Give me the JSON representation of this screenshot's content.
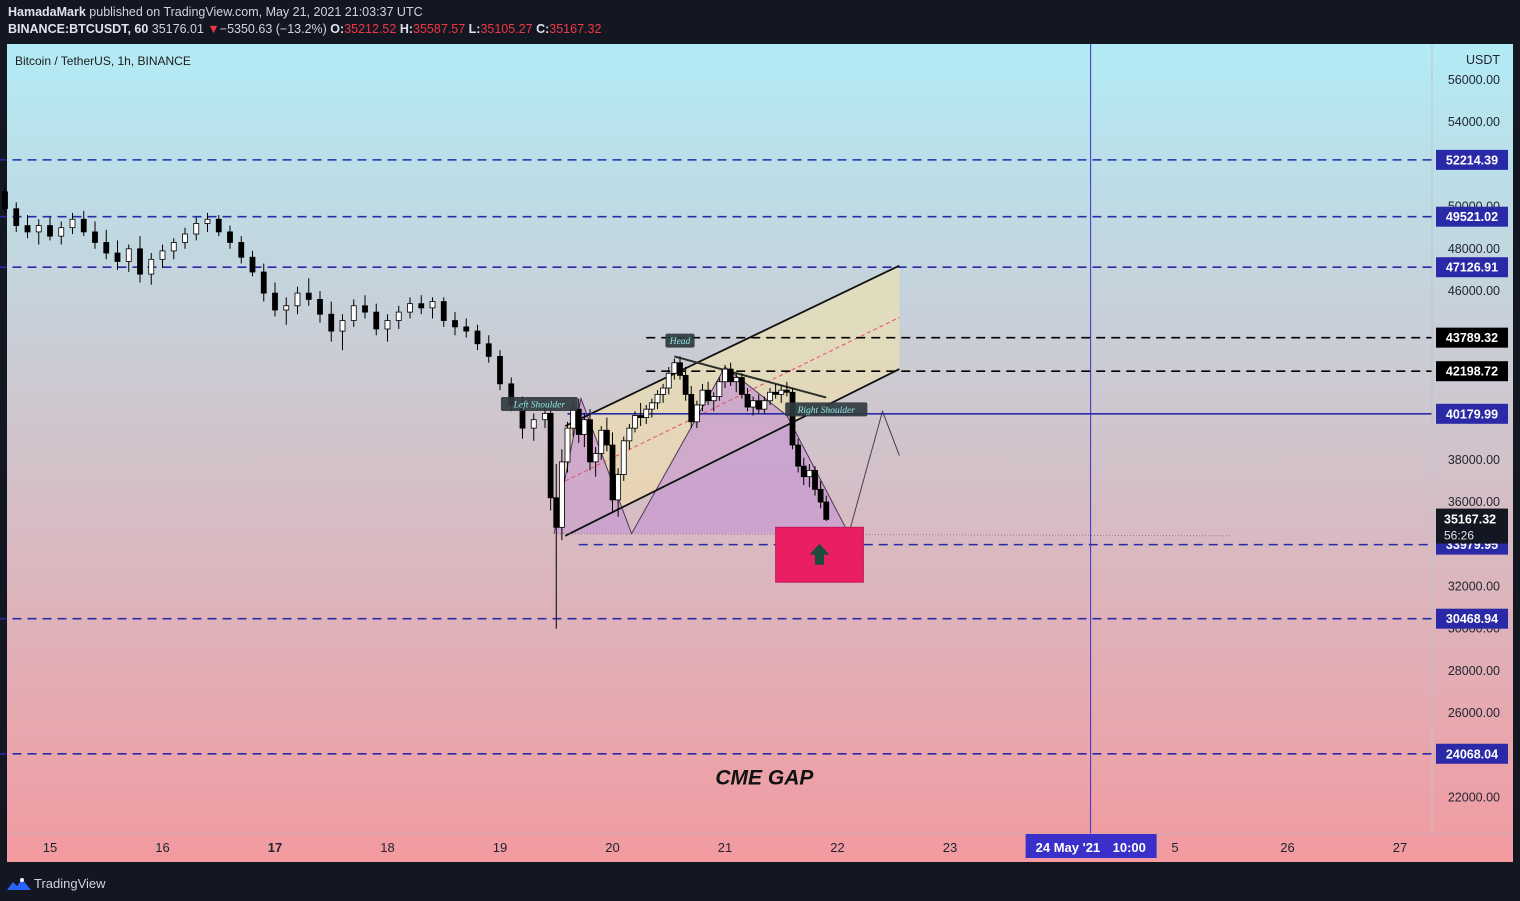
{
  "header": {
    "publisher_name": "HamadaMark",
    "publisher_rest": " published on TradingView.com, May 21, 2021 21:03:37 UTC",
    "symbol_line": "BINANCE:BTCUSDT, 60",
    "last_price": "35176.01",
    "change_arrow": "▼",
    "change": "−5350.63 (−13.2%)",
    "o_label": "O:",
    "o_value": "35212.52",
    "h_label": "H:",
    "h_value": "35587.57",
    "l_label": "L:",
    "l_value": "35105.27",
    "c_label": "C:",
    "c_value": "35167.32"
  },
  "footer": {
    "brand": "TradingView"
  },
  "chart_data": {
    "type": "candlestick",
    "title": "Bitcoin / TetherUS, 1h, BINANCE",
    "currency_label": "USDT",
    "ylim": [
      20000,
      57000
    ],
    "y_ticks": [
      56000,
      54000,
      50000,
      48000,
      46000,
      38000,
      36000,
      32000,
      30000,
      28000,
      26000,
      22000
    ],
    "x_ticks": [
      {
        "day": 15,
        "label": "15",
        "bold": false
      },
      {
        "day": 16,
        "label": "16",
        "bold": false
      },
      {
        "day": 17,
        "label": "17",
        "bold": true
      },
      {
        "day": 18,
        "label": "18",
        "bold": false
      },
      {
        "day": 19,
        "label": "19",
        "bold": false
      },
      {
        "day": 20,
        "label": "20",
        "bold": false
      },
      {
        "day": 21,
        "label": "21",
        "bold": false
      },
      {
        "day": 22,
        "label": "22",
        "bold": false
      },
      {
        "day": 23,
        "label": "23",
        "bold": false
      },
      {
        "day": 25,
        "label": "5",
        "bold": false
      },
      {
        "day": 26,
        "label": "26",
        "bold": false
      },
      {
        "day": 27,
        "label": "27",
        "bold": false
      }
    ],
    "crosshair_label": {
      "date": "24 May '21",
      "time": "10:00",
      "day": 24.25
    },
    "levels": [
      {
        "price": 52214.39,
        "label": "52214.39",
        "color": "#2a2aa8",
        "style": "dashed",
        "from_day": 14.0
      },
      {
        "price": 49521.02,
        "label": "49521.02",
        "color": "#2a2aa8",
        "style": "dashed",
        "from_day": 14.0
      },
      {
        "price": 47126.91,
        "label": "47126.91",
        "color": "#2a2aa8",
        "style": "dashed",
        "from_day": 14.0
      },
      {
        "price": 43789.32,
        "label": "43789.32",
        "color": "#000000",
        "style": "dashed",
        "from_day": 20.3
      },
      {
        "price": 42198.72,
        "label": "42198.72",
        "color": "#000000",
        "style": "dashed",
        "from_day": 20.3
      },
      {
        "price": 40179.99,
        "label": "40179.99",
        "color": "#2a2aa8",
        "style": "solid",
        "from_day": 19.6
      },
      {
        "price": 33979.95,
        "label": "33979.95",
        "color": "#2a2aa8",
        "style": "dashed",
        "from_day": 19.7
      },
      {
        "price": 30468.94,
        "label": "30468.94",
        "color": "#2a2aa8",
        "style": "dashed",
        "from_day": 14.0
      },
      {
        "price": 24068.04,
        "label": "24068.04",
        "color": "#2a2aa8",
        "style": "dashed",
        "from_day": 14.0
      }
    ],
    "last_price_label": {
      "price": 35167.32,
      "label": "35167.32",
      "countdown": "56:26"
    },
    "candles": [
      [
        14.0,
        51500,
        51900,
        51000,
        51300
      ],
      [
        14.1,
        51300,
        51600,
        50600,
        50800
      ],
      [
        14.2,
        50800,
        51100,
        50200,
        50500
      ],
      [
        14.3,
        50500,
        50900,
        49600,
        49800
      ],
      [
        14.4,
        49800,
        50300,
        49400,
        50100
      ],
      [
        14.5,
        50100,
        50900,
        49800,
        50700
      ],
      [
        14.6,
        50700,
        51000,
        49700,
        49900
      ],
      [
        14.7,
        49900,
        50200,
        48800,
        49100
      ],
      [
        14.8,
        49100,
        49600,
        48500,
        48800
      ],
      [
        14.9,
        48800,
        49400,
        48200,
        49100
      ],
      [
        15.0,
        49100,
        49500,
        48400,
        48600
      ],
      [
        15.1,
        48600,
        49300,
        48200,
        49000
      ],
      [
        15.2,
        49000,
        49700,
        48700,
        49400
      ],
      [
        15.3,
        49400,
        49800,
        48600,
        48800
      ],
      [
        15.4,
        48800,
        49300,
        48000,
        48300
      ],
      [
        15.5,
        48300,
        48900,
        47500,
        47800
      ],
      [
        15.6,
        47800,
        48400,
        47000,
        47400
      ],
      [
        15.7,
        47400,
        48200,
        46900,
        48000
      ],
      [
        15.8,
        48000,
        48600,
        46400,
        46800
      ],
      [
        15.9,
        46800,
        47800,
        46300,
        47500
      ],
      [
        16.0,
        47500,
        48200,
        47100,
        47900
      ],
      [
        16.1,
        47900,
        48500,
        47500,
        48300
      ],
      [
        16.2,
        48300,
        49000,
        48000,
        48700
      ],
      [
        16.3,
        48700,
        49500,
        48400,
        49200
      ],
      [
        16.4,
        49200,
        49700,
        48800,
        49400
      ],
      [
        16.5,
        49400,
        49600,
        48600,
        48800
      ],
      [
        16.6,
        48800,
        49100,
        48000,
        48300
      ],
      [
        16.7,
        48300,
        48600,
        47300,
        47600
      ],
      [
        16.8,
        47600,
        47900,
        46700,
        46900
      ],
      [
        16.9,
        46900,
        47300,
        45500,
        45900
      ],
      [
        17.0,
        45900,
        46400,
        44800,
        45100
      ],
      [
        17.1,
        45100,
        45700,
        44400,
        45300
      ],
      [
        17.2,
        45300,
        46200,
        44900,
        45900
      ],
      [
        17.3,
        45900,
        46600,
        45300,
        45600
      ],
      [
        17.4,
        45600,
        46000,
        44500,
        44900
      ],
      [
        17.5,
        44900,
        45500,
        43600,
        44100
      ],
      [
        17.6,
        44100,
        44900,
        43200,
        44600
      ],
      [
        17.7,
        44600,
        45600,
        44300,
        45300
      ],
      [
        17.8,
        45300,
        45800,
        44700,
        45000
      ],
      [
        17.9,
        45000,
        45400,
        43900,
        44200
      ],
      [
        18.0,
        44200,
        44900,
        43600,
        44600
      ],
      [
        18.1,
        44600,
        45300,
        44200,
        45000
      ],
      [
        18.2,
        45000,
        45700,
        44700,
        45400
      ],
      [
        18.3,
        45400,
        45800,
        44900,
        45200
      ],
      [
        18.4,
        45200,
        45700,
        44700,
        45500
      ],
      [
        18.5,
        45500,
        45700,
        44300,
        44600
      ],
      [
        18.6,
        44600,
        45000,
        43900,
        44300
      ],
      [
        18.7,
        44300,
        44700,
        43800,
        44100
      ],
      [
        18.8,
        44100,
        44400,
        43200,
        43500
      ],
      [
        18.9,
        43500,
        43900,
        42600,
        42900
      ],
      [
        19.0,
        42900,
        43200,
        41300,
        41600
      ],
      [
        19.1,
        41600,
        41900,
        40300,
        40600
      ],
      [
        19.2,
        40600,
        41000,
        39000,
        39500
      ],
      [
        19.3,
        39500,
        40200,
        38900,
        39900
      ],
      [
        19.4,
        39900,
        40600,
        39500,
        40200
      ],
      [
        19.45,
        40200,
        40500,
        35600,
        36200
      ],
      [
        19.5,
        36200,
        37800,
        30000,
        34800
      ],
      [
        19.55,
        34800,
        38500,
        34200,
        37900
      ],
      [
        19.6,
        37900,
        39800,
        37400,
        39500
      ],
      [
        19.65,
        39500,
        40700,
        39100,
        40400
      ],
      [
        19.7,
        40400,
        40900,
        38800,
        39200
      ],
      [
        19.75,
        39200,
        40200,
        38600,
        39900
      ],
      [
        19.8,
        39900,
        40400,
        37500,
        37900
      ],
      [
        19.85,
        37900,
        38600,
        37200,
        38300
      ],
      [
        19.9,
        38300,
        39600,
        38000,
        39400
      ],
      [
        19.95,
        39400,
        40000,
        38400,
        38700
      ],
      [
        20.0,
        38700,
        39300,
        35500,
        36100
      ],
      [
        20.05,
        36100,
        37600,
        35300,
        37300
      ],
      [
        20.1,
        37300,
        39100,
        37000,
        38900
      ],
      [
        20.15,
        38900,
        39700,
        38500,
        39500
      ],
      [
        20.2,
        39500,
        40300,
        39300,
        40100
      ],
      [
        20.25,
        40100,
        40700,
        39600,
        40000
      ],
      [
        20.3,
        40000,
        40600,
        39700,
        40400
      ],
      [
        20.35,
        40400,
        40900,
        40000,
        40700
      ],
      [
        20.4,
        40700,
        41300,
        40400,
        41100
      ],
      [
        20.45,
        41100,
        41600,
        40700,
        41400
      ],
      [
        20.5,
        41400,
        42400,
        41100,
        42100
      ],
      [
        20.55,
        42100,
        42800,
        41800,
        42600
      ],
      [
        20.6,
        42600,
        42900,
        41800,
        42000
      ],
      [
        20.65,
        42000,
        42400,
        40800,
        41100
      ],
      [
        20.7,
        41100,
        41500,
        39500,
        39800
      ],
      [
        20.75,
        39800,
        40800,
        39500,
        40600
      ],
      [
        20.8,
        40600,
        41600,
        40300,
        41300
      ],
      [
        20.85,
        41300,
        41700,
        40600,
        40800
      ],
      [
        20.9,
        40800,
        41200,
        40300,
        41000
      ],
      [
        20.95,
        41000,
        41900,
        40800,
        41700
      ],
      [
        21.0,
        41700,
        42500,
        41400,
        42300
      ],
      [
        21.05,
        42300,
        42600,
        41500,
        41700
      ],
      [
        21.1,
        41700,
        42100,
        41200,
        41900
      ],
      [
        21.15,
        41900,
        42100,
        40900,
        41100
      ],
      [
        21.2,
        41100,
        41400,
        40300,
        40500
      ],
      [
        21.25,
        40500,
        41000,
        40100,
        40800
      ],
      [
        21.3,
        40800,
        41100,
        40200,
        40400
      ],
      [
        21.35,
        40400,
        41000,
        40200,
        40800
      ],
      [
        21.4,
        40800,
        41400,
        40600,
        41200
      ],
      [
        21.45,
        41200,
        41600,
        40900,
        41100
      ],
      [
        21.5,
        41100,
        41500,
        40700,
        41300
      ],
      [
        21.55,
        41300,
        41700,
        41000,
        41200
      ],
      [
        21.6,
        41200,
        41400,
        38500,
        38700
      ],
      [
        21.65,
        38700,
        39000,
        37400,
        37700
      ],
      [
        21.7,
        37700,
        38100,
        36800,
        37200
      ],
      [
        21.75,
        37200,
        37800,
        36700,
        37500
      ],
      [
        21.8,
        37500,
        37700,
        36300,
        36600
      ],
      [
        21.85,
        36600,
        37000,
        35700,
        36000
      ],
      [
        21.9,
        36000,
        36300,
        35100,
        35176
      ]
    ],
    "annotations": [
      {
        "text": "Left Shoulder",
        "day": 19.35,
        "price": 40600
      },
      {
        "text": "Head",
        "day": 20.6,
        "price": 43600
      },
      {
        "text": "Right Shoulder",
        "day": 21.9,
        "price": 40340
      },
      {
        "text": "CME GAP",
        "day": 21.35,
        "price": 22600
      }
    ],
    "colors": {
      "bg_top": "#b2ebf5",
      "bg_bottom": "#f29aa0",
      "up": "#ffffff",
      "down": "#000000",
      "level_blue": "#2a2aa8",
      "channel_fill": "#f5e6a8",
      "pattern_fill": "#c79bd0",
      "gap_box": "#e91e63",
      "arrow": "#1a4d3c",
      "crosshair": "#3b2fc9"
    }
  }
}
